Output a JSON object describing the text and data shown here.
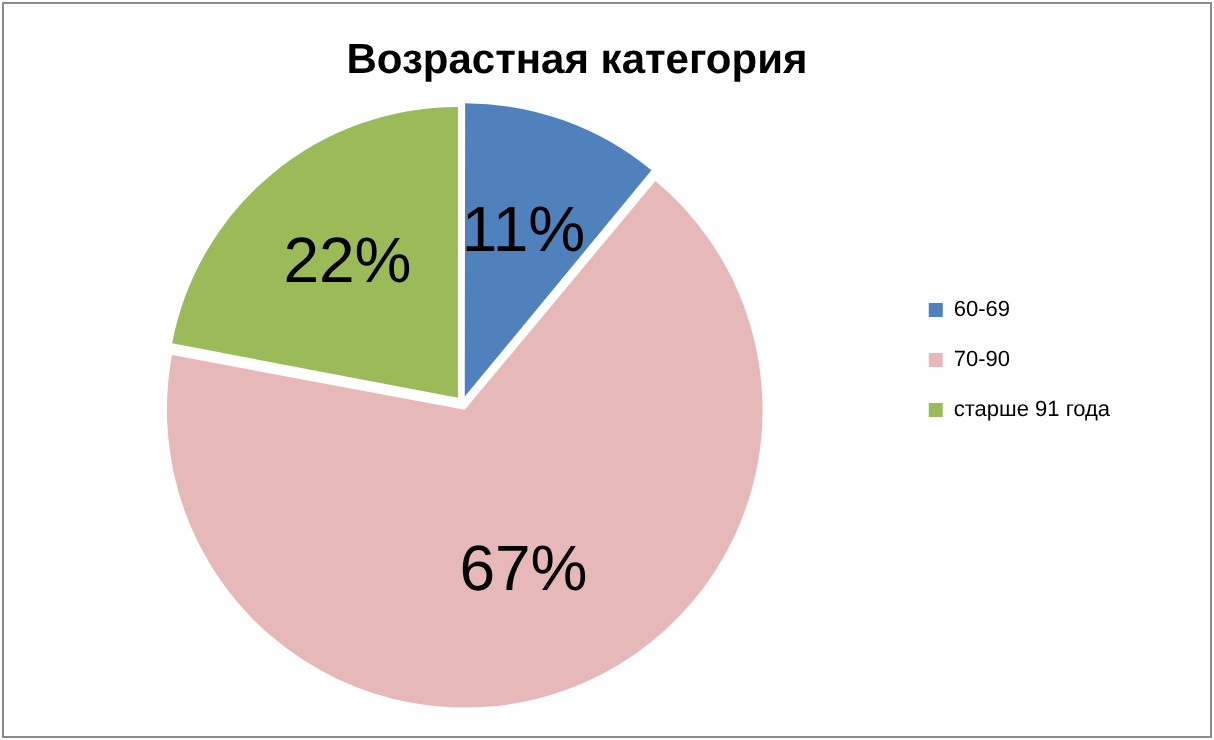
{
  "chart_data": {
    "type": "pie",
    "title": "Возрастная категория",
    "categories": [
      "60-69",
      "70-90",
      "старше 91 года"
    ],
    "values": [
      11,
      67,
      22
    ],
    "colors": [
      "#4f81bd",
      "#e6b9b8",
      "#9bbb59"
    ],
    "value_labels": [
      "11%",
      "67%",
      "22%"
    ],
    "legend": "right"
  }
}
